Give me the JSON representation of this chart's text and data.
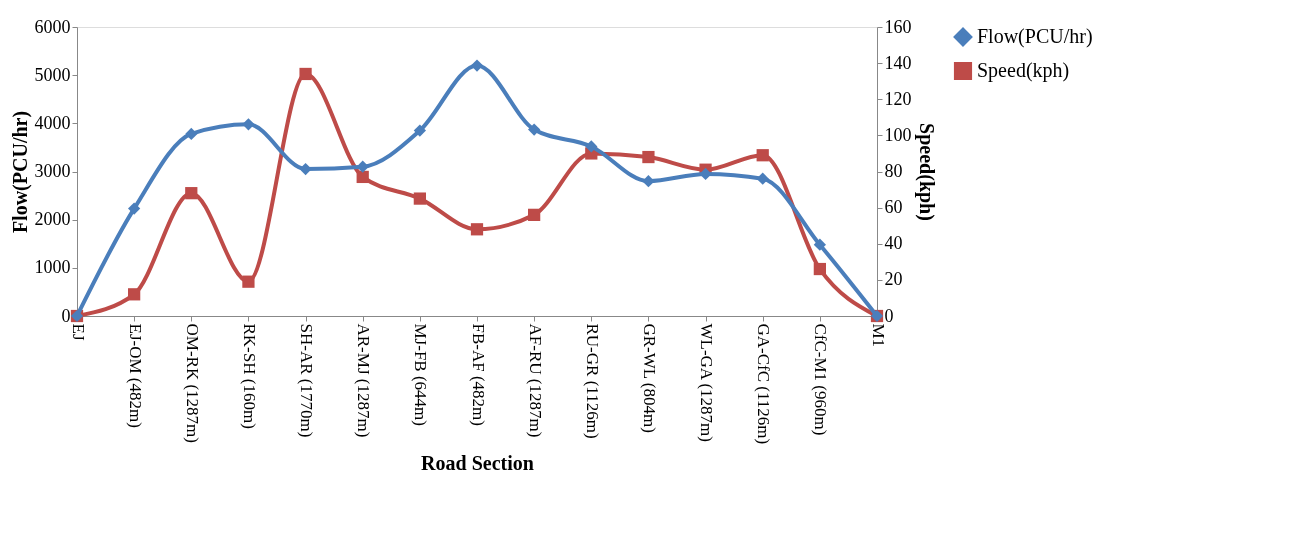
{
  "chart_data": {
    "type": "line",
    "xlabel": "Road Section",
    "ylabel": "Flow(PCU/hr)",
    "y2label": "Speed(kph)",
    "categories": [
      "EJ",
      "EJ-OM (482m)",
      "OM-RK (1287m)",
      "RK-SH (160m)",
      "SH-AR (1770m)",
      "AR-MJ (1287m)",
      "MJ-FB (644m)",
      "FB-AF (482m)",
      "AF-RU (1287m)",
      "RU-GR (1126m)",
      "GR-WL (804m)",
      "WL-GA (1287m)",
      "GA-CfC (1126m)",
      "CfC-M1 (960m)",
      "M1"
    ],
    "series": [
      {
        "name": "Flow(PCU/hr)",
        "color": "#4a7ebb",
        "marker": "diamond",
        "values": [
          0,
          2230,
          3780,
          3980,
          3050,
          3100,
          3850,
          5200,
          3870,
          3520,
          2800,
          2950,
          2850,
          1480,
          0
        ]
      },
      {
        "name": "Speed(kph)",
        "color": "#be4b48",
        "marker": "square",
        "axis": "y2",
        "values": [
          0,
          12,
          68,
          19,
          134,
          77,
          65,
          48,
          56,
          90,
          88,
          81,
          89,
          26,
          0
        ]
      }
    ],
    "ylim": [
      0,
      6000
    ],
    "yticks": [
      0,
      1000,
      2000,
      3000,
      4000,
      5000,
      6000
    ],
    "y2lim": [
      0,
      160
    ],
    "y2ticks": [
      0,
      20,
      40,
      60,
      80,
      100,
      120,
      140,
      160
    ],
    "grid": false,
    "legend": "right",
    "line_style": "solid"
  }
}
